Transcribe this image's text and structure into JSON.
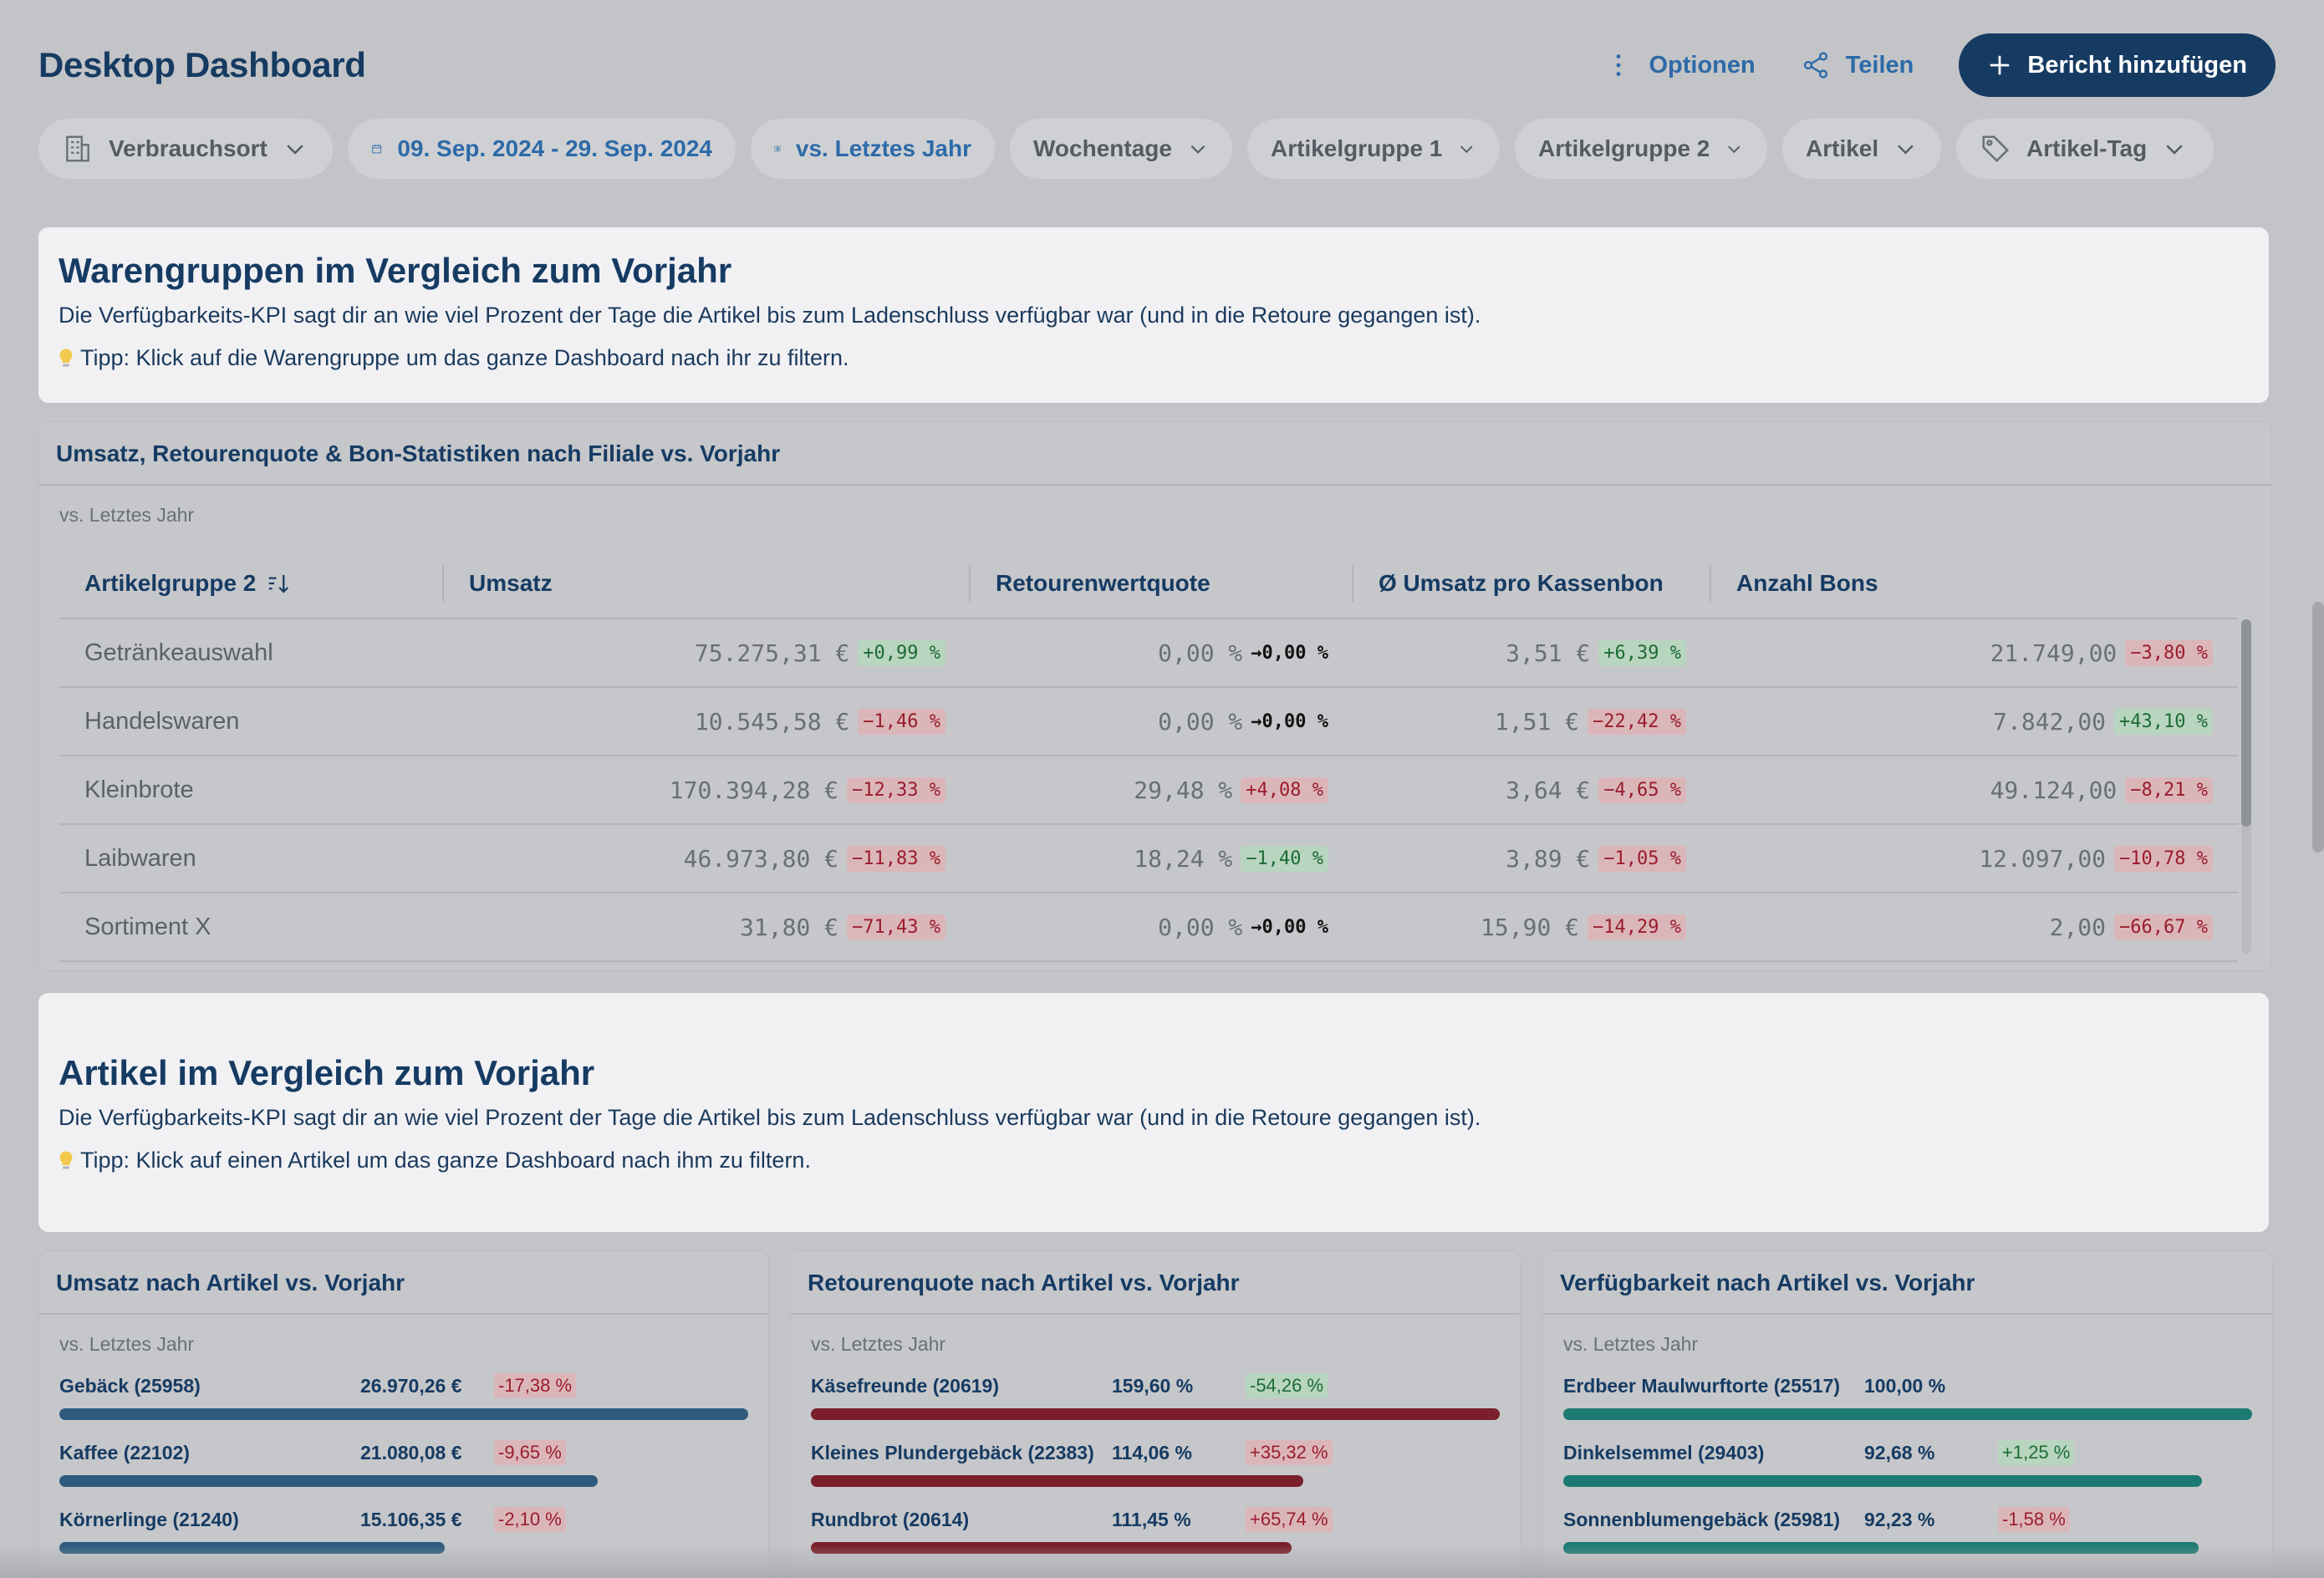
{
  "header": {
    "title": "Desktop Dashboard",
    "options_label": "Optionen",
    "share_label": "Teilen",
    "add_report_label": "Bericht hinzufügen"
  },
  "filters": {
    "location": "Verbrauchsort",
    "date_range": "09. Sep. 2024 - 29. Sep. 2024",
    "comparison": "vs. Letztes Jahr",
    "weekdays": "Wochentage",
    "article_group_1": "Artikelgruppe 1",
    "article_group_2": "Artikelgruppe 2",
    "article": "Artikel",
    "article_tag": "Artikel-Tag"
  },
  "section1": {
    "title": "Warengruppen im Vergleich zum Vorjahr",
    "description": "Die Verfügbarkeits-KPI sagt dir an wie viel Prozent der Tage die Artikel bis zum Ladenschluss verfügbar war (und in die Retoure gegangen ist).",
    "tip": "Tipp: Klick auf die Warengruppe um das ganze Dashboard nach ihr zu filtern."
  },
  "table_panel": {
    "title": "Umsatz, Retourenquote & Bon-Statistiken nach Filiale vs. Vorjahr",
    "subtitle": "vs. Letztes Jahr",
    "columns": [
      "Artikelgruppe 2",
      "Umsatz",
      "Retourenwertquote",
      "Ø Umsatz pro Kassenbon",
      "Anzahl Bons"
    ],
    "rows": [
      {
        "name": "Getränkeauswahl",
        "umsatz": "75.275,31 €",
        "umsatz_chg": "+0,99 %",
        "umsatz_dir": "pos",
        "retoure": "0,00 %",
        "retoure_chg": "→0,00 %",
        "retoure_dir": "neutral",
        "bon": "3,51 €",
        "bon_chg": "+6,39 %",
        "bon_dir": "pos",
        "anzahl": "21.749,00",
        "anzahl_chg": "−3,80 %",
        "anzahl_dir": "neg"
      },
      {
        "name": "Handelswaren",
        "umsatz": "10.545,58 €",
        "umsatz_chg": "−1,46 %",
        "umsatz_dir": "neg",
        "retoure": "0,00 %",
        "retoure_chg": "→0,00 %",
        "retoure_dir": "neutral",
        "bon": "1,51 €",
        "bon_chg": "−22,42 %",
        "bon_dir": "neg",
        "anzahl": "7.842,00",
        "anzahl_chg": "+43,10 %",
        "anzahl_dir": "pos"
      },
      {
        "name": "Kleinbrote",
        "umsatz": "170.394,28 €",
        "umsatz_chg": "−12,33 %",
        "umsatz_dir": "neg",
        "retoure": "29,48 %",
        "retoure_chg": "+4,08 %",
        "retoure_dir": "neg",
        "bon": "3,64 €",
        "bon_chg": "−4,65 %",
        "bon_dir": "neg",
        "anzahl": "49.124,00",
        "anzahl_chg": "−8,21 %",
        "anzahl_dir": "neg"
      },
      {
        "name": "Laibwaren",
        "umsatz": "46.973,80 €",
        "umsatz_chg": "−11,83 %",
        "umsatz_dir": "neg",
        "retoure": "18,24 %",
        "retoure_chg": "−1,40 %",
        "retoure_dir": "pos",
        "bon": "3,89 €",
        "bon_chg": "−1,05 %",
        "bon_dir": "neg",
        "anzahl": "12.097,00",
        "anzahl_chg": "−10,78 %",
        "anzahl_dir": "neg"
      },
      {
        "name": "Sortiment X",
        "umsatz": "31,80 €",
        "umsatz_chg": "−71,43 %",
        "umsatz_dir": "neg",
        "retoure": "0,00 %",
        "retoure_chg": "→0,00 %",
        "retoure_dir": "neutral",
        "bon": "15,90 €",
        "bon_chg": "−14,29 %",
        "bon_dir": "neg",
        "anzahl": "2,00",
        "anzahl_chg": "−66,67 %",
        "anzahl_dir": "neg"
      }
    ]
  },
  "section2": {
    "title": "Artikel im Vergleich zum Vorjahr",
    "description": "Die Verfügbarkeits-KPI sagt dir an wie viel Prozent der Tage die Artikel bis zum Ladenschluss verfügbar war (und in die Retoure gegangen ist).",
    "tip": "Tipp: Klick auf einen Artikel um das ganze Dashboard nach ihm zu filtern."
  },
  "bar_panels": [
    {
      "title": "Umsatz nach Artikel vs. Vorjahr",
      "subtitle": "vs. Letztes Jahr",
      "color": "#2e5a7d",
      "items": [
        {
          "label": "Gebäck (25958)",
          "value": "26.970,26 €",
          "change": "-17,38 %",
          "dir": "neg",
          "fraction": 1.0
        },
        {
          "label": "Kaffee (22102)",
          "value": "21.080,08 €",
          "change": "-9,65 %",
          "dir": "neg",
          "fraction": 0.782
        },
        {
          "label": "Körnerlinge (21240)",
          "value": "15.106,35 €",
          "change": "-2,10 %",
          "dir": "neg",
          "fraction": 0.56
        }
      ]
    },
    {
      "title": "Retourenquote nach Artikel vs. Vorjahr",
      "subtitle": "vs. Letztes Jahr",
      "color": "#7a1f2b",
      "items": [
        {
          "label": "Käsefreunde (20619)",
          "value": "159,60 %",
          "change": "-54,26 %",
          "dir": "pos",
          "fraction": 1.0
        },
        {
          "label": "Kleines Plundergebäck (22383)",
          "value": "114,06 %",
          "change": "+35,32 %",
          "dir": "neg",
          "fraction": 0.715
        },
        {
          "label": "Rundbrot (20614)",
          "value": "111,45 %",
          "change": "+65,74 %",
          "dir": "neg",
          "fraction": 0.698
        }
      ]
    },
    {
      "title": "Verfügbarkeit nach Artikel vs. Vorjahr",
      "subtitle": "vs. Letztes Jahr",
      "color": "#1d7a73",
      "items": [
        {
          "label": "Erdbeer Maulwurftorte (25517)",
          "value": "100,00 %",
          "change": "",
          "dir": "none",
          "fraction": 1.0
        },
        {
          "label": "Dinkelsemmel (29403)",
          "value": "92,68 %",
          "change": "+1,25 %",
          "dir": "pos",
          "fraction": 0.927
        },
        {
          "label": "Sonnenblumengebäck (25981)",
          "value": "92,23 %",
          "change": "-1,58 %",
          "dir": "neg",
          "fraction": 0.922
        }
      ]
    }
  ]
}
